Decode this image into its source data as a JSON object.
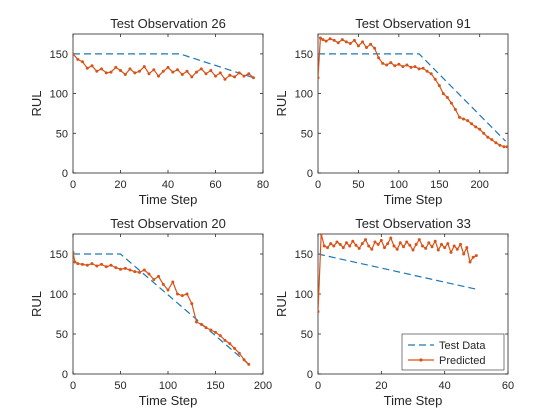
{
  "figure": {
    "colors": {
      "test": "#1f77b4",
      "predicted": "#d95319",
      "axis": "#262626"
    }
  },
  "chart_data": [
    {
      "type": "line",
      "title": "Test Observation 26",
      "xlabel": "Time Step",
      "ylabel": "RUL",
      "xlim": [
        0,
        80
      ],
      "ylim": [
        0,
        175
      ],
      "xticks": [
        0,
        20,
        40,
        60,
        80
      ],
      "yticks": [
        0,
        50,
        100,
        150
      ],
      "grid": false,
      "series": [
        {
          "name": "Test Data",
          "style": "dashed",
          "x": [
            0,
            45,
            76
          ],
          "y": [
            150,
            150,
            120
          ]
        },
        {
          "name": "Predicted",
          "style": "line-dot",
          "x": [
            0,
            2,
            4,
            6,
            8,
            10,
            12,
            14,
            16,
            18,
            20,
            22,
            24,
            26,
            28,
            30,
            32,
            34,
            36,
            38,
            40,
            42,
            44,
            46,
            48,
            50,
            52,
            54,
            56,
            58,
            60,
            62,
            64,
            66,
            68,
            70,
            72,
            74,
            76
          ],
          "y": [
            150,
            143,
            140,
            132,
            135,
            128,
            131,
            126,
            127,
            133,
            129,
            124,
            131,
            126,
            128,
            134,
            125,
            130,
            122,
            128,
            133,
            127,
            130,
            124,
            128,
            121,
            127,
            131,
            125,
            129,
            122,
            126,
            118,
            123,
            121,
            126,
            122,
            125,
            120
          ]
        }
      ]
    },
    {
      "type": "line",
      "title": "Test Observation 91",
      "xlabel": "Time Step",
      "ylabel": "RUL",
      "xlim": [
        0,
        235
      ],
      "ylim": [
        0,
        175
      ],
      "xticks": [
        0,
        50,
        100,
        150,
        200
      ],
      "yticks": [
        0,
        50,
        100,
        150
      ],
      "grid": false,
      "series": [
        {
          "name": "Test Data",
          "style": "dashed",
          "x": [
            0,
            125,
            232
          ],
          "y": [
            150,
            150,
            40
          ]
        },
        {
          "name": "Predicted",
          "style": "line-dot",
          "x": [
            0,
            3,
            6,
            10,
            15,
            20,
            25,
            30,
            35,
            40,
            45,
            50,
            55,
            60,
            65,
            70,
            75,
            80,
            85,
            90,
            95,
            100,
            105,
            110,
            115,
            120,
            125,
            130,
            135,
            140,
            145,
            150,
            155,
            160,
            165,
            170,
            175,
            180,
            185,
            190,
            195,
            200,
            205,
            210,
            215,
            220,
            225,
            230,
            234
          ],
          "y": [
            120,
            170,
            168,
            166,
            169,
            167,
            164,
            168,
            165,
            163,
            167,
            160,
            165,
            158,
            162,
            157,
            145,
            138,
            136,
            139,
            135,
            137,
            134,
            136,
            133,
            134,
            131,
            132,
            128,
            125,
            118,
            110,
            100,
            95,
            88,
            80,
            70,
            68,
            66,
            62,
            58,
            55,
            50,
            45,
            42,
            38,
            35,
            33,
            33
          ]
        }
      ]
    },
    {
      "type": "line",
      "title": "Test Observation 20",
      "xlabel": "Time Step",
      "ylabel": "RUL",
      "xlim": [
        0,
        200
      ],
      "ylim": [
        0,
        175
      ],
      "xticks": [
        0,
        50,
        100,
        150,
        200
      ],
      "yticks": [
        0,
        50,
        100,
        150
      ],
      "grid": false,
      "series": [
        {
          "name": "Test Data",
          "style": "dashed",
          "x": [
            0,
            50,
            185
          ],
          "y": [
            150,
            150,
            12
          ]
        },
        {
          "name": "Predicted",
          "style": "line-dot",
          "x": [
            0,
            2,
            5,
            10,
            15,
            20,
            25,
            30,
            35,
            40,
            45,
            50,
            55,
            60,
            65,
            70,
            75,
            80,
            85,
            90,
            95,
            100,
            105,
            110,
            115,
            120,
            125,
            130,
            135,
            140,
            145,
            150,
            155,
            160,
            165,
            170,
            175,
            180,
            185
          ],
          "y": [
            152,
            140,
            138,
            137,
            136,
            138,
            135,
            137,
            134,
            136,
            133,
            131,
            132,
            130,
            128,
            127,
            130,
            125,
            118,
            122,
            112,
            105,
            115,
            100,
            98,
            100,
            88,
            65,
            62,
            58,
            55,
            52,
            48,
            42,
            38,
            32,
            26,
            18,
            12
          ]
        }
      ]
    },
    {
      "type": "line",
      "title": "Test Observation 33",
      "xlabel": "Time Step",
      "ylabel": "RUL",
      "xlim": [
        0,
        60
      ],
      "ylim": [
        0,
        175
      ],
      "xticks": [
        0,
        20,
        40,
        60
      ],
      "yticks": [
        0,
        50,
        100,
        150
      ],
      "grid": false,
      "legend": "bottom-right",
      "series": [
        {
          "name": "Test Data",
          "style": "dashed",
          "x": [
            0,
            50
          ],
          "y": [
            150,
            106
          ]
        },
        {
          "name": "Predicted",
          "style": "line-dot",
          "x": [
            0,
            1,
            2,
            3,
            4,
            5,
            6,
            7,
            8,
            9,
            10,
            11,
            12,
            13,
            14,
            15,
            16,
            17,
            18,
            19,
            20,
            21,
            22,
            23,
            24,
            25,
            26,
            27,
            28,
            29,
            30,
            31,
            32,
            33,
            34,
            35,
            36,
            37,
            38,
            39,
            40,
            41,
            42,
            43,
            44,
            45,
            46,
            47,
            48,
            49,
            50
          ],
          "y": [
            78,
            175,
            160,
            158,
            163,
            160,
            165,
            162,
            158,
            164,
            160,
            166,
            161,
            157,
            163,
            168,
            160,
            156,
            165,
            162,
            167,
            158,
            163,
            170,
            160,
            156,
            164,
            159,
            165,
            161,
            155,
            162,
            168,
            160,
            157,
            164,
            159,
            166,
            155,
            162,
            158,
            163,
            152,
            160,
            156,
            162,
            150,
            158,
            140,
            146,
            148
          ]
        }
      ]
    }
  ]
}
